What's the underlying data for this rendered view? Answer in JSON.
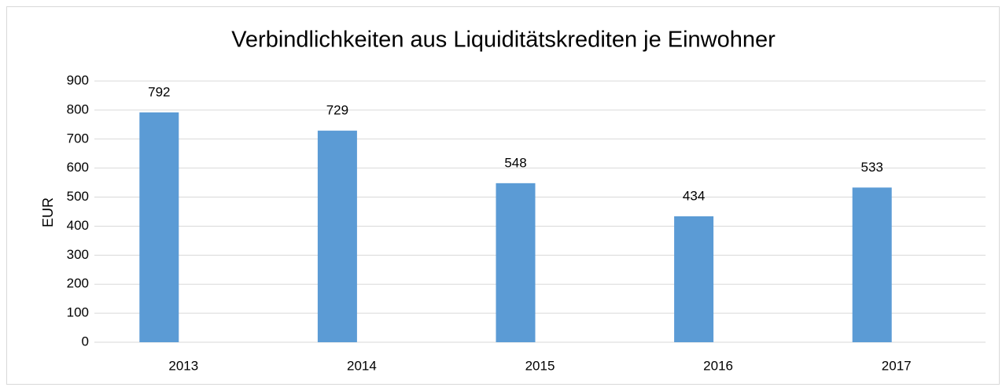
{
  "chart_data": {
    "type": "bar",
    "title": "Verbindlichkeiten aus Liquiditätskrediten je Einwohner",
    "ylabel": "EUR",
    "categories": [
      "2013",
      "2014",
      "2015",
      "2016",
      "2017"
    ],
    "values": [
      792,
      729,
      548,
      434,
      533
    ],
    "color": "#5b9bd5",
    "ylim": [
      0,
      900
    ],
    "yticks": [
      0,
      100,
      200,
      300,
      400,
      500,
      600,
      700,
      800,
      900
    ],
    "grid": true
  }
}
